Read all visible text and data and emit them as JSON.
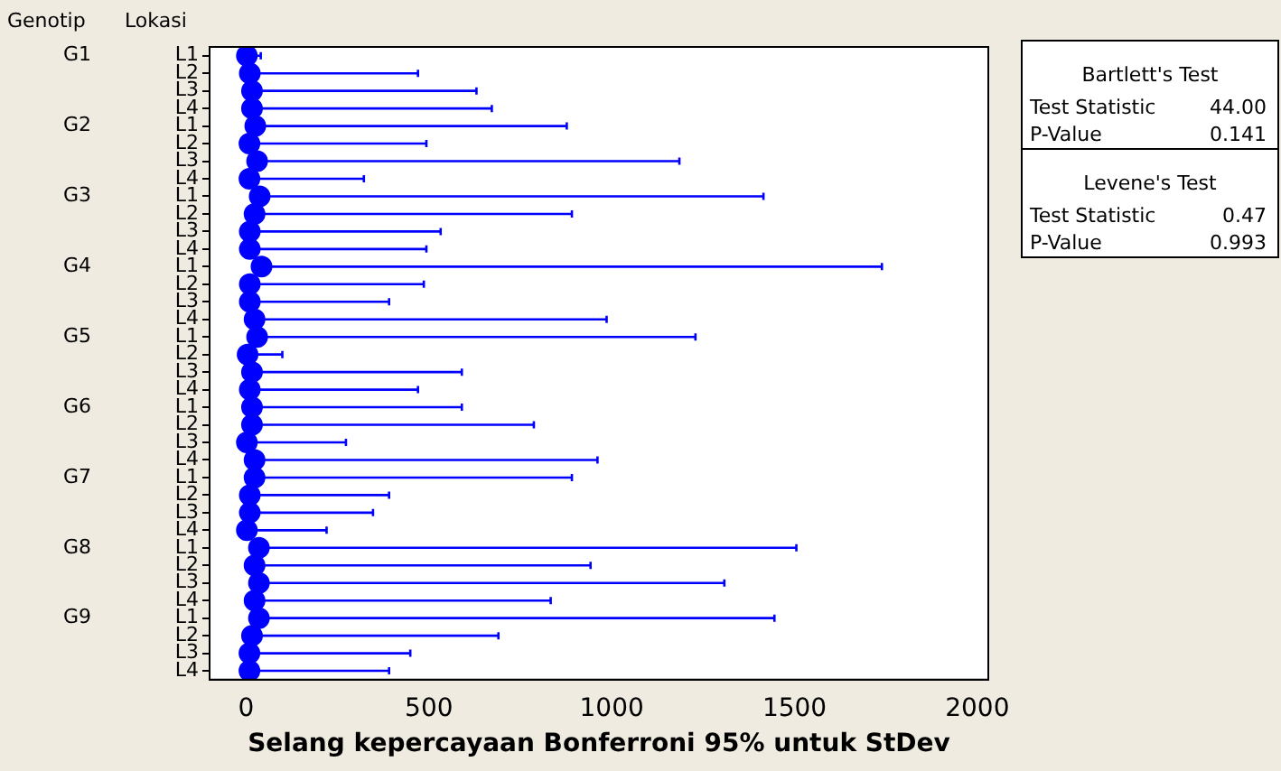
{
  "chart_data": {
    "type": "scatter",
    "orientation": "horizontal",
    "xlabel": "Selang kepercayaan Bonferroni 95% untuk StDev",
    "categories": [
      "L1",
      "L2",
      "L3",
      "L4",
      "L1",
      "L2",
      "L3",
      "L4",
      "L1",
      "L2",
      "L3",
      "L4",
      "L1",
      "L2",
      "L3",
      "L4",
      "L1",
      "L2",
      "L3",
      "L4",
      "L1",
      "L2",
      "L3",
      "L4",
      "L1",
      "L2",
      "L3",
      "L4",
      "L1",
      "L2",
      "L3",
      "L4",
      "L1",
      "L2",
      "L3",
      "L4"
    ],
    "values": [
      2,
      10,
      16,
      16,
      25,
      9,
      30,
      9,
      37,
      23,
      10,
      10,
      42,
      10,
      10,
      23,
      30,
      4,
      16,
      10,
      16,
      16,
      2,
      23,
      23,
      10,
      10,
      2,
      35,
      23,
      35,
      23,
      35,
      16,
      9,
      9
    ],
    "errors": [
      [
        1,
        40
      ],
      [
        5,
        470
      ],
      [
        8,
        630
      ],
      [
        8,
        672
      ],
      [
        12,
        877
      ],
      [
        4,
        493
      ],
      [
        15,
        1185
      ],
      [
        4,
        322
      ],
      [
        18,
        1415
      ],
      [
        11,
        891
      ],
      [
        5,
        532
      ],
      [
        5,
        493
      ],
      [
        21,
        1739
      ],
      [
        5,
        486
      ],
      [
        5,
        391
      ],
      [
        11,
        986
      ],
      [
        15,
        1229
      ],
      [
        2,
        99
      ],
      [
        8,
        590
      ],
      [
        5,
        470
      ],
      [
        8,
        590
      ],
      [
        8,
        787
      ],
      [
        1,
        273
      ],
      [
        11,
        961
      ],
      [
        11,
        891
      ],
      [
        5,
        391
      ],
      [
        5,
        347
      ],
      [
        1,
        220
      ],
      [
        17,
        1505
      ],
      [
        11,
        942
      ],
      [
        17,
        1308
      ],
      [
        11,
        833
      ],
      [
        17,
        1445
      ],
      [
        8,
        690
      ],
      [
        4,
        449
      ],
      [
        4,
        391
      ]
    ],
    "color": "#0000ff",
    "marker": "circle",
    "xlim": [
      -100,
      2030
    ],
    "xticks": [
      0,
      500,
      1000,
      1500,
      2000
    ],
    "grid": false,
    "legend": false,
    "annotations": [
      "Genotip",
      "Lokasi",
      "G1",
      "G2",
      "G3",
      "G4",
      "G5",
      "G6",
      "G7",
      "G8",
      "G9",
      "Bartlett's Test",
      "Test Statistic",
      "44.00",
      "P-Value",
      "0.141",
      "Levene's Test",
      "Test Statistic",
      "0.47",
      "P-Value",
      "0.993"
    ]
  }
}
